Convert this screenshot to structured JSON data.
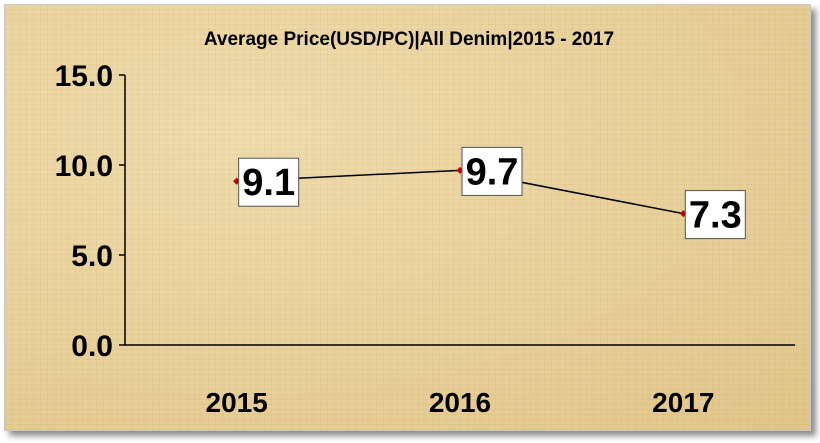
{
  "chart_data": {
    "type": "line",
    "title": "Average Price(USD/PC)|All Denim|2015 - 2017",
    "categories": [
      "2015",
      "2016",
      "2017"
    ],
    "series": [
      {
        "values": [
          9.1,
          9.7,
          7.3
        ]
      }
    ],
    "data_labels": [
      "9.1",
      "9.7",
      "7.3"
    ],
    "yticks": [
      "0.0",
      "5.0",
      "10.0",
      "15.0"
    ],
    "ylim": [
      0,
      15
    ],
    "grid": false,
    "legend": "none",
    "colors": {
      "line": "#000000",
      "marker": "#c00000",
      "label_box": "#ffffff",
      "background": "#e9d39f"
    }
  }
}
